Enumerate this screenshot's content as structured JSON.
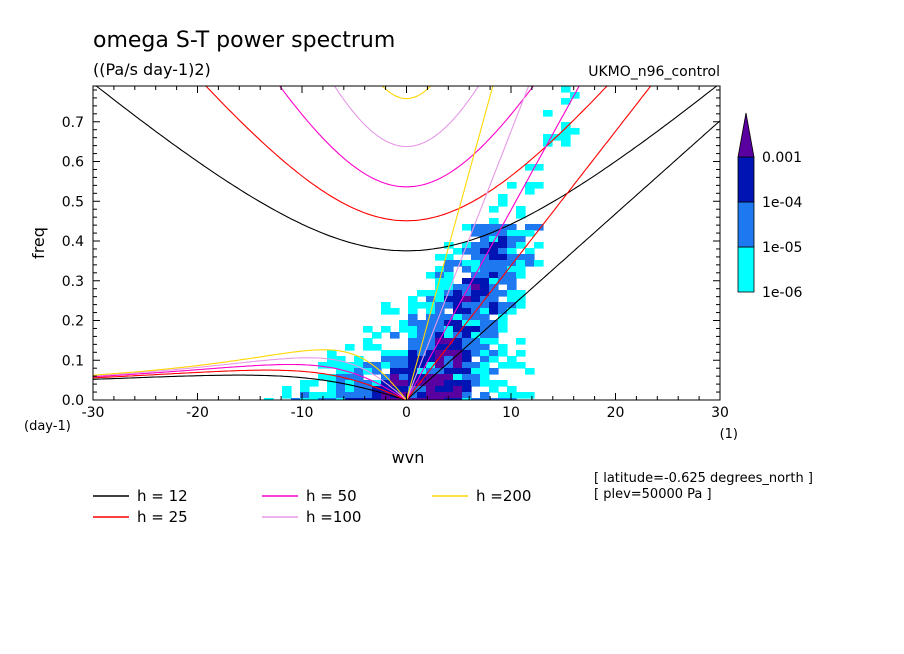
{
  "chart_data": {
    "type": "heatmap",
    "title": "omega S-T power spectrum",
    "subtitle": "((Pa/s day-1)2)",
    "run_label": "UKMO_n96_control",
    "xlabel": "wvn",
    "ylabel": "freq",
    "x_unit": "(1)",
    "y_unit": "(day-1)",
    "xlim": [
      -30,
      30
    ],
    "ylim": [
      0,
      0.79
    ],
    "x_ticks": [
      -30,
      -20,
      -10,
      0,
      10,
      20,
      30
    ],
    "x_tick_labels": [
      "-30",
      "-20",
      "-10",
      "0",
      "10",
      "20",
      "30"
    ],
    "y_ticks": [
      0,
      0.1,
      0.2,
      0.3,
      0.4,
      0.5,
      0.6,
      0.7
    ],
    "y_tick_labels": [
      "0.0",
      "0.1",
      "0.2",
      "0.3",
      "0.4",
      "0.5",
      "0.6",
      "0.7"
    ],
    "colorbar": {
      "levels": [
        "1e-06",
        "1e-05",
        "1e-04",
        "0.001"
      ],
      "colors": [
        "#00ffff",
        "#1e78f0",
        "#0014b4",
        "#5a00a0"
      ]
    },
    "series": [
      {
        "name": "h = 12",
        "equivalent_depth": 12,
        "color": "#000000"
      },
      {
        "name": "h = 25",
        "equivalent_depth": 25,
        "color": "#ff0000"
      },
      {
        "name": "h = 50",
        "equivalent_depth": 50,
        "color": "#ff00cc"
      },
      {
        "name": "h =100",
        "equivalent_depth": 100,
        "color": "#e699e6"
      },
      {
        "name": "h =200",
        "equivalent_depth": 200,
        "color": "#ffd700"
      }
    ],
    "annotations": [
      "[ latitude=-0.625 degrees_north ]",
      "[ plev=50000 Pa ]"
    ]
  }
}
